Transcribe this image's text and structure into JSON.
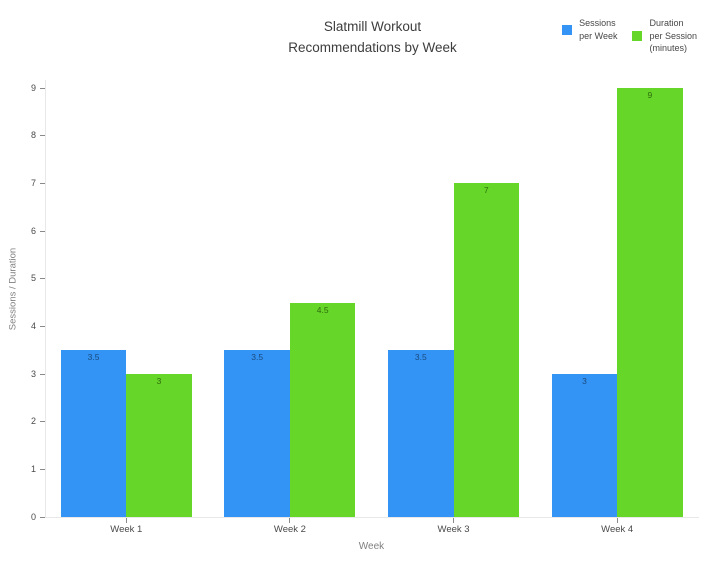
{
  "chart_data": {
    "type": "bar",
    "title": "Slatmill Workout\nRecommendations by Week",
    "categories": [
      "Week 1",
      "Week 2",
      "Week 3",
      "Week 4"
    ],
    "series": [
      {
        "name": "Sessions per Week",
        "legend_label": "Sessions\nper Week",
        "color": "#3494f5",
        "label_color": "#1a4a7d",
        "values": [
          3.5,
          3.5,
          3.5,
          3
        ]
      },
      {
        "name": "Duration per Session (minutes)",
        "legend_label": "Duration\nper Session\n(minutes)",
        "color": "#66d629",
        "label_color": "#2e6e0c",
        "values": [
          3,
          4.5,
          7,
          9
        ]
      }
    ],
    "xlabel": "Week",
    "ylabel": "Sessions / Duration",
    "yticks": [
      0,
      1,
      2,
      3,
      4,
      5,
      6,
      7,
      8,
      9
    ],
    "ylim": [
      0,
      9
    ],
    "bar_value_labels": [
      "3.5",
      "3",
      "3.5",
      "4.5",
      "3.5",
      "7",
      "3",
      "9"
    ],
    "grid": false,
    "legend_position": "top-right",
    "axis_line_color": "#e8e8e8",
    "tick_color": "#8a8a8a"
  }
}
